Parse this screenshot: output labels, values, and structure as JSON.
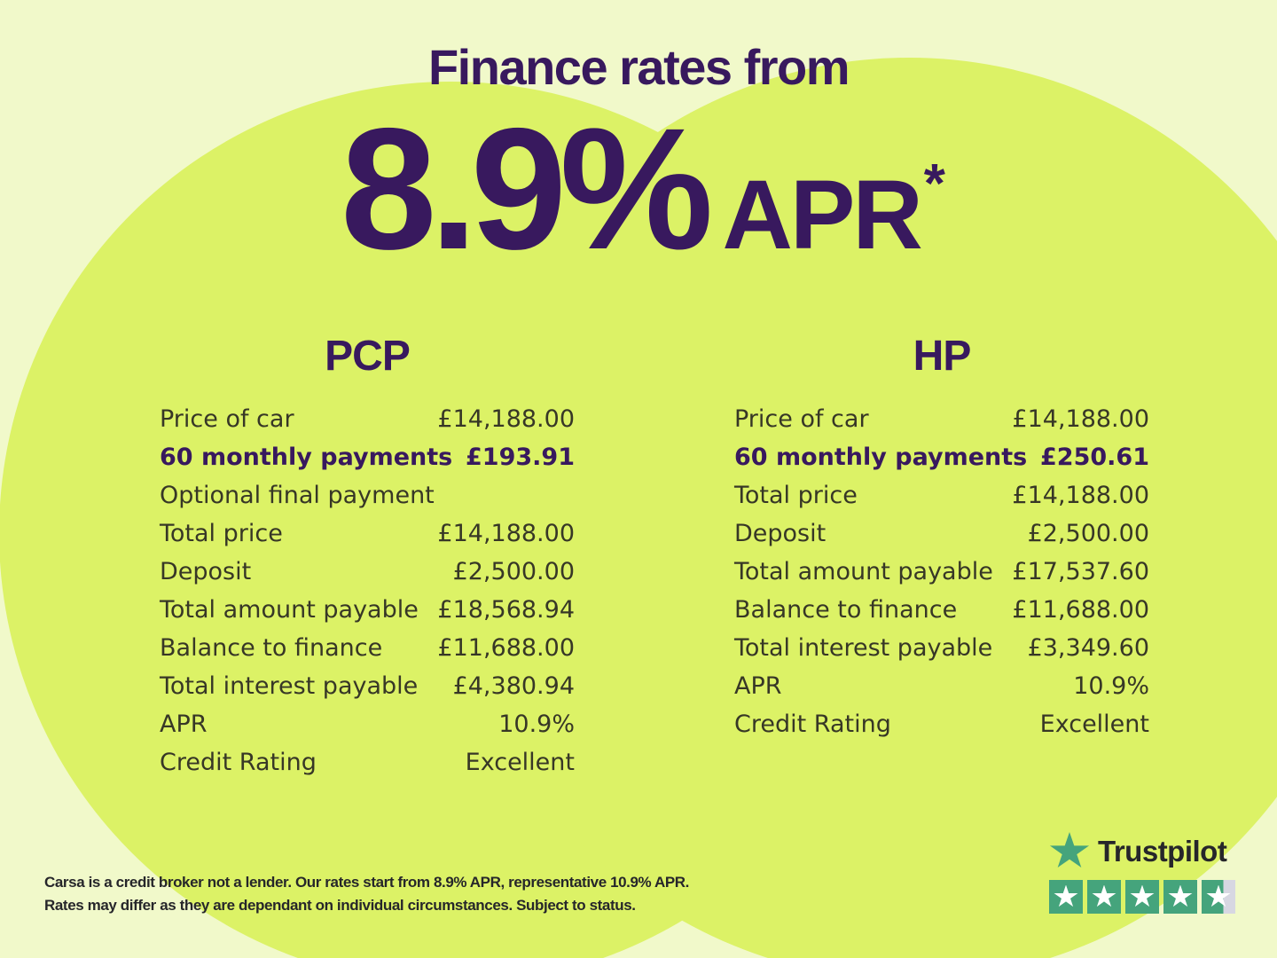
{
  "header": {
    "title": "Finance rates from",
    "rate": "8.9%",
    "rate_unit": "APR",
    "rate_asterisk": "*"
  },
  "tables": [
    {
      "name": "PCP",
      "rows": [
        {
          "label": "Price of car",
          "value": "£14,188.00",
          "emphasis": false
        },
        {
          "label": "60 monthly payments",
          "value": "£193.91",
          "emphasis": true
        },
        {
          "label": "Optional final payment",
          "value": "",
          "emphasis": false
        },
        {
          "label": "Total price",
          "value": "£14,188.00",
          "emphasis": false
        },
        {
          "label": "Deposit",
          "value": "£2,500.00",
          "emphasis": false
        },
        {
          "label": "Total amount payable",
          "value": "£18,568.94",
          "emphasis": false
        },
        {
          "label": "Balance to finance",
          "value": "£11,688.00",
          "emphasis": false
        },
        {
          "label": "Total interest payable",
          "value": "£4,380.94",
          "emphasis": false
        },
        {
          "label": "APR",
          "value": "10.9%",
          "emphasis": false
        },
        {
          "label": "Credit Rating",
          "value": "Excellent",
          "emphasis": false
        }
      ]
    },
    {
      "name": "HP",
      "rows": [
        {
          "label": "Price of car",
          "value": "£14,188.00",
          "emphasis": false
        },
        {
          "label": "60 monthly payments",
          "value": "£250.61",
          "emphasis": true
        },
        {
          "label": "Total price",
          "value": "£14,188.00",
          "emphasis": false
        },
        {
          "label": "Deposit",
          "value": "£2,500.00",
          "emphasis": false
        },
        {
          "label": "Total amount payable",
          "value": "£17,537.60",
          "emphasis": false
        },
        {
          "label": "Balance to finance",
          "value": "£11,688.00",
          "emphasis": false
        },
        {
          "label": "Total interest payable",
          "value": "£3,349.60",
          "emphasis": false
        },
        {
          "label": "APR",
          "value": "10.9%",
          "emphasis": false
        },
        {
          "label": "Credit Rating",
          "value": "Excellent",
          "emphasis": false
        }
      ]
    }
  ],
  "disclaimer": {
    "line1": "Carsa is a credit broker not a lender. Our rates start from 8.9% APR, representative 10.9% APR.",
    "line2": "Rates may differ as they are dependant on individual circumstances. Subject to status."
  },
  "trustpilot": {
    "brand": "Trustpilot",
    "rating_star_count": 5,
    "last_star_fill_percent": 65
  },
  "colors": {
    "background": "#f1f9ca",
    "circle": "#dcf266",
    "purple": "#38195e",
    "table_text": "#373726",
    "ink": "#26262a",
    "tp_green": "#45a47c",
    "star_empty": "#d7d7e2"
  }
}
